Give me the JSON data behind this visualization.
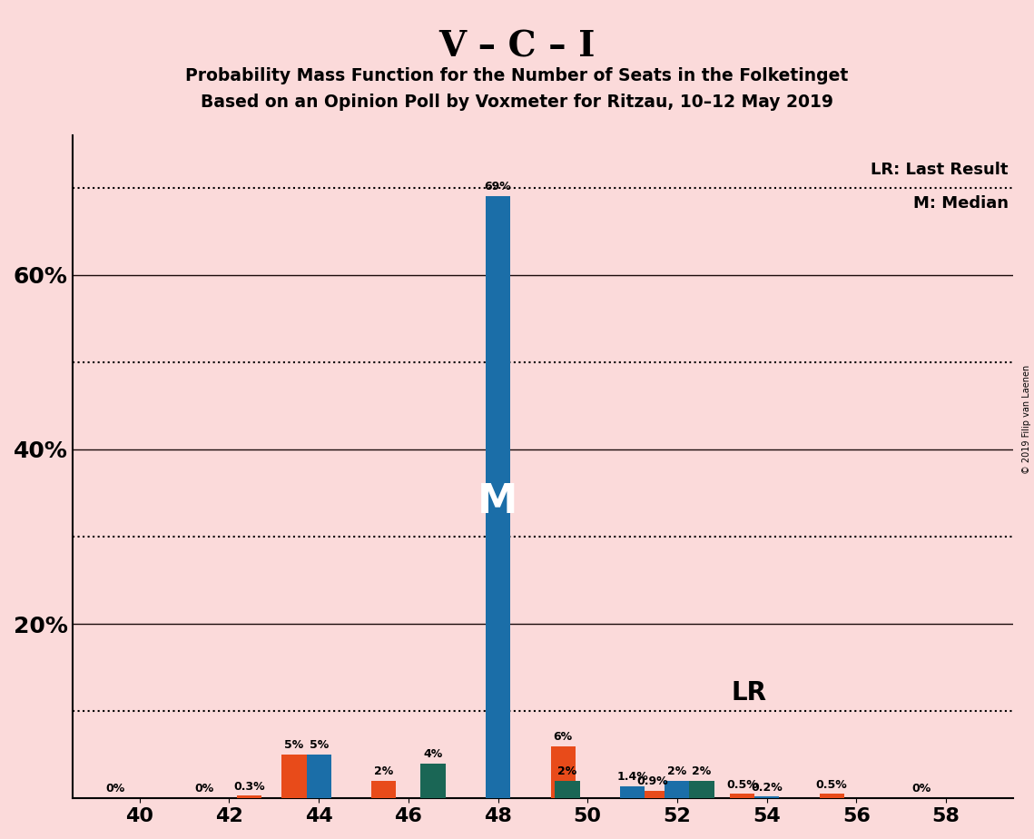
{
  "title": "V – C – I",
  "subtitle1": "Probability Mass Function for the Number of Seats in the Folketinget",
  "subtitle2": "Based on an Opinion Poll by Voxmeter for Ritzau, 10–12 May 2019",
  "copyright": "© 2019 Filip van Laenen",
  "background_color": "#FBDADA",
  "bar_color_orange": "#E84B1A",
  "bar_color_blue": "#1B6EA8",
  "bar_color_teal": "#1A6655",
  "lr_line_y": 0.1,
  "median_seat": 48,
  "seats": [
    40,
    41,
    42,
    43,
    44,
    45,
    46,
    47,
    48,
    49,
    50,
    51,
    52,
    53,
    54,
    55,
    56,
    57,
    58
  ],
  "orange_values": [
    0.0,
    0.0,
    0.0,
    0.003,
    0.05,
    0.0,
    0.02,
    0.0,
    0.0,
    0.0,
    0.06,
    0.0,
    0.009,
    0.0,
    0.005,
    0.0,
    0.005,
    0.0,
    0.0
  ],
  "blue_values": [
    0.0,
    0.0,
    0.0,
    0.0,
    0.05,
    0.0,
    0.0,
    0.0,
    0.69,
    0.0,
    0.0,
    0.014,
    0.02,
    0.0,
    0.002,
    0.0,
    0.0,
    0.0,
    0.0
  ],
  "teal_values": [
    0.0,
    0.0,
    0.0,
    0.0,
    0.0,
    0.0,
    0.04,
    0.0,
    0.0,
    0.02,
    0.0,
    0.0,
    0.02,
    0.0,
    0.0,
    0.0,
    0.0,
    0.0,
    0.0
  ],
  "bar_labels_orange": [
    "0%",
    "",
    "0%",
    "0.3%",
    "5%",
    "",
    "2%",
    "",
    "",
    "",
    "6%",
    "",
    "0.9%",
    "",
    "0.5%",
    "",
    "0.5%",
    "",
    "0%"
  ],
  "bar_labels_blue": [
    "",
    "",
    "",
    "",
    "5%",
    "",
    "",
    "",
    "69%",
    "",
    "",
    "1.4%",
    "2%",
    "",
    "0.2%",
    "",
    "",
    "",
    ""
  ],
  "bar_labels_teal": [
    "",
    "",
    "",
    "",
    "",
    "",
    "4%",
    "",
    "",
    "2%",
    "",
    "",
    "2%",
    "",
    "",
    "",
    "",
    "",
    ""
  ],
  "xlim": [
    38.5,
    59.5
  ],
  "ylim": [
    0,
    0.76
  ],
  "xticks": [
    40,
    42,
    44,
    46,
    48,
    50,
    52,
    54,
    56,
    58
  ],
  "solid_gridlines": [
    0.2,
    0.4,
    0.6
  ],
  "dotted_gridlines": [
    0.1,
    0.3,
    0.5,
    0.7
  ],
  "ytick_positions": [
    0.2,
    0.4,
    0.6
  ],
  "ytick_labels": [
    "20%",
    "40%",
    "60%"
  ],
  "bar_width": 0.55
}
